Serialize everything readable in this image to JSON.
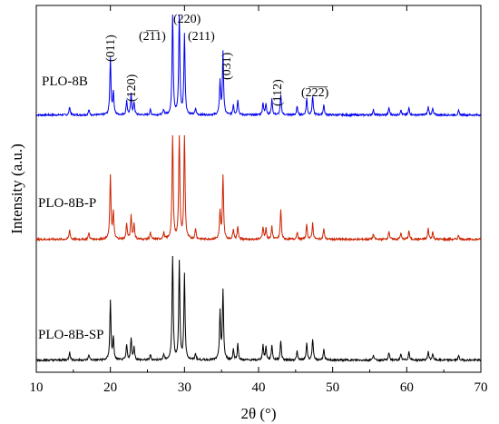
{
  "chart_data": {
    "type": "line",
    "xlabel": "2θ (°)",
    "ylabel": "Intensity (a.u.)",
    "xlim": [
      10,
      70
    ],
    "xticks": [
      "10",
      "20",
      "30",
      "40",
      "50",
      "60",
      "70"
    ],
    "y_ticks_shown": false,
    "grid": false,
    "legend": "none",
    "series": [
      {
        "name": "PLO-8B",
        "color": "#0000ee",
        "peaks": [
          {
            "x": 14.5,
            "h": 0.08
          },
          {
            "x": 17.1,
            "h": 0.05
          },
          {
            "x": 20.0,
            "h": 0.55
          },
          {
            "x": 20.4,
            "h": 0.22
          },
          {
            "x": 22.2,
            "h": 0.14
          },
          {
            "x": 22.8,
            "h": 0.2
          },
          {
            "x": 23.2,
            "h": 0.12
          },
          {
            "x": 25.4,
            "h": 0.05
          },
          {
            "x": 27.2,
            "h": 0.05
          },
          {
            "x": 28.4,
            "h": 1.0
          },
          {
            "x": 29.3,
            "h": 1.0
          },
          {
            "x": 30.0,
            "h": 0.78
          },
          {
            "x": 31.5,
            "h": 0.06
          },
          {
            "x": 34.8,
            "h": 0.32
          },
          {
            "x": 35.2,
            "h": 0.6
          },
          {
            "x": 36.6,
            "h": 0.1
          },
          {
            "x": 37.2,
            "h": 0.15
          },
          {
            "x": 40.6,
            "h": 0.12
          },
          {
            "x": 41.0,
            "h": 0.11
          },
          {
            "x": 41.8,
            "h": 0.15
          },
          {
            "x": 43.0,
            "h": 0.19
          },
          {
            "x": 45.2,
            "h": 0.08
          },
          {
            "x": 46.5,
            "h": 0.16
          },
          {
            "x": 47.3,
            "h": 0.18
          },
          {
            "x": 48.8,
            "h": 0.1
          },
          {
            "x": 55.5,
            "h": 0.05
          },
          {
            "x": 57.6,
            "h": 0.07
          },
          {
            "x": 59.2,
            "h": 0.05
          },
          {
            "x": 60.3,
            "h": 0.07
          },
          {
            "x": 62.9,
            "h": 0.08
          },
          {
            "x": 63.5,
            "h": 0.06
          },
          {
            "x": 67.0,
            "h": 0.04
          }
        ]
      },
      {
        "name": "PLO-8B-P",
        "color": "#cc2200",
        "peaks": [
          {
            "x": 14.5,
            "h": 0.09
          },
          {
            "x": 17.1,
            "h": 0.06
          },
          {
            "x": 20.0,
            "h": 0.6
          },
          {
            "x": 20.4,
            "h": 0.25
          },
          {
            "x": 22.2,
            "h": 0.15
          },
          {
            "x": 22.8,
            "h": 0.22
          },
          {
            "x": 23.2,
            "h": 0.14
          },
          {
            "x": 25.4,
            "h": 0.06
          },
          {
            "x": 27.2,
            "h": 0.06
          },
          {
            "x": 28.4,
            "h": 1.0
          },
          {
            "x": 29.3,
            "h": 1.0
          },
          {
            "x": 30.0,
            "h": 1.0
          },
          {
            "x": 31.5,
            "h": 0.1
          },
          {
            "x": 34.8,
            "h": 0.25
          },
          {
            "x": 35.2,
            "h": 0.6
          },
          {
            "x": 36.6,
            "h": 0.1
          },
          {
            "x": 37.2,
            "h": 0.12
          },
          {
            "x": 40.6,
            "h": 0.12
          },
          {
            "x": 41.0,
            "h": 0.1
          },
          {
            "x": 41.8,
            "h": 0.12
          },
          {
            "x": 43.0,
            "h": 0.28
          },
          {
            "x": 45.2,
            "h": 0.07
          },
          {
            "x": 46.5,
            "h": 0.14
          },
          {
            "x": 47.3,
            "h": 0.15
          },
          {
            "x": 48.8,
            "h": 0.1
          },
          {
            "x": 55.5,
            "h": 0.05
          },
          {
            "x": 57.6,
            "h": 0.08
          },
          {
            "x": 59.2,
            "h": 0.06
          },
          {
            "x": 60.3,
            "h": 0.08
          },
          {
            "x": 62.9,
            "h": 0.1
          },
          {
            "x": 63.5,
            "h": 0.07
          },
          {
            "x": 67.0,
            "h": 0.04
          }
        ]
      },
      {
        "name": "PLO-8B-SP",
        "color": "#000000",
        "peaks": [
          {
            "x": 14.5,
            "h": 0.08
          },
          {
            "x": 17.1,
            "h": 0.05
          },
          {
            "x": 20.0,
            "h": 0.55
          },
          {
            "x": 20.4,
            "h": 0.2
          },
          {
            "x": 22.2,
            "h": 0.14
          },
          {
            "x": 22.8,
            "h": 0.2
          },
          {
            "x": 23.2,
            "h": 0.12
          },
          {
            "x": 25.4,
            "h": 0.05
          },
          {
            "x": 27.2,
            "h": 0.05
          },
          {
            "x": 28.4,
            "h": 1.0
          },
          {
            "x": 29.3,
            "h": 0.92
          },
          {
            "x": 30.0,
            "h": 0.8
          },
          {
            "x": 31.5,
            "h": 0.06
          },
          {
            "x": 34.8,
            "h": 0.45
          },
          {
            "x": 35.2,
            "h": 0.65
          },
          {
            "x": 36.6,
            "h": 0.1
          },
          {
            "x": 37.2,
            "h": 0.15
          },
          {
            "x": 40.6,
            "h": 0.14
          },
          {
            "x": 41.0,
            "h": 0.12
          },
          {
            "x": 41.8,
            "h": 0.14
          },
          {
            "x": 43.0,
            "h": 0.18
          },
          {
            "x": 45.2,
            "h": 0.08
          },
          {
            "x": 46.5,
            "h": 0.16
          },
          {
            "x": 47.3,
            "h": 0.2
          },
          {
            "x": 48.8,
            "h": 0.1
          },
          {
            "x": 55.5,
            "h": 0.05
          },
          {
            "x": 57.6,
            "h": 0.07
          },
          {
            "x": 59.2,
            "h": 0.05
          },
          {
            "x": 60.3,
            "h": 0.08
          },
          {
            "x": 62.9,
            "h": 0.08
          },
          {
            "x": 63.5,
            "h": 0.06
          },
          {
            "x": 67.0,
            "h": 0.04
          }
        ]
      }
    ],
    "annotations": [
      {
        "x": 20.0,
        "text": "(011)"
      },
      {
        "x": 22.8,
        "text": "(120)"
      },
      {
        "x": 27.2,
        "text": "(2̅1̅1)"
      },
      {
        "x": 29.3,
        "text": "(220)"
      },
      {
        "x": 32.0,
        "text": "(211)"
      },
      {
        "x": 35.2,
        "text": "(031)"
      },
      {
        "x": 42.2,
        "text": "(112)"
      },
      {
        "x": 47.3,
        "text": "(2̅2̅2̅)"
      }
    ]
  }
}
